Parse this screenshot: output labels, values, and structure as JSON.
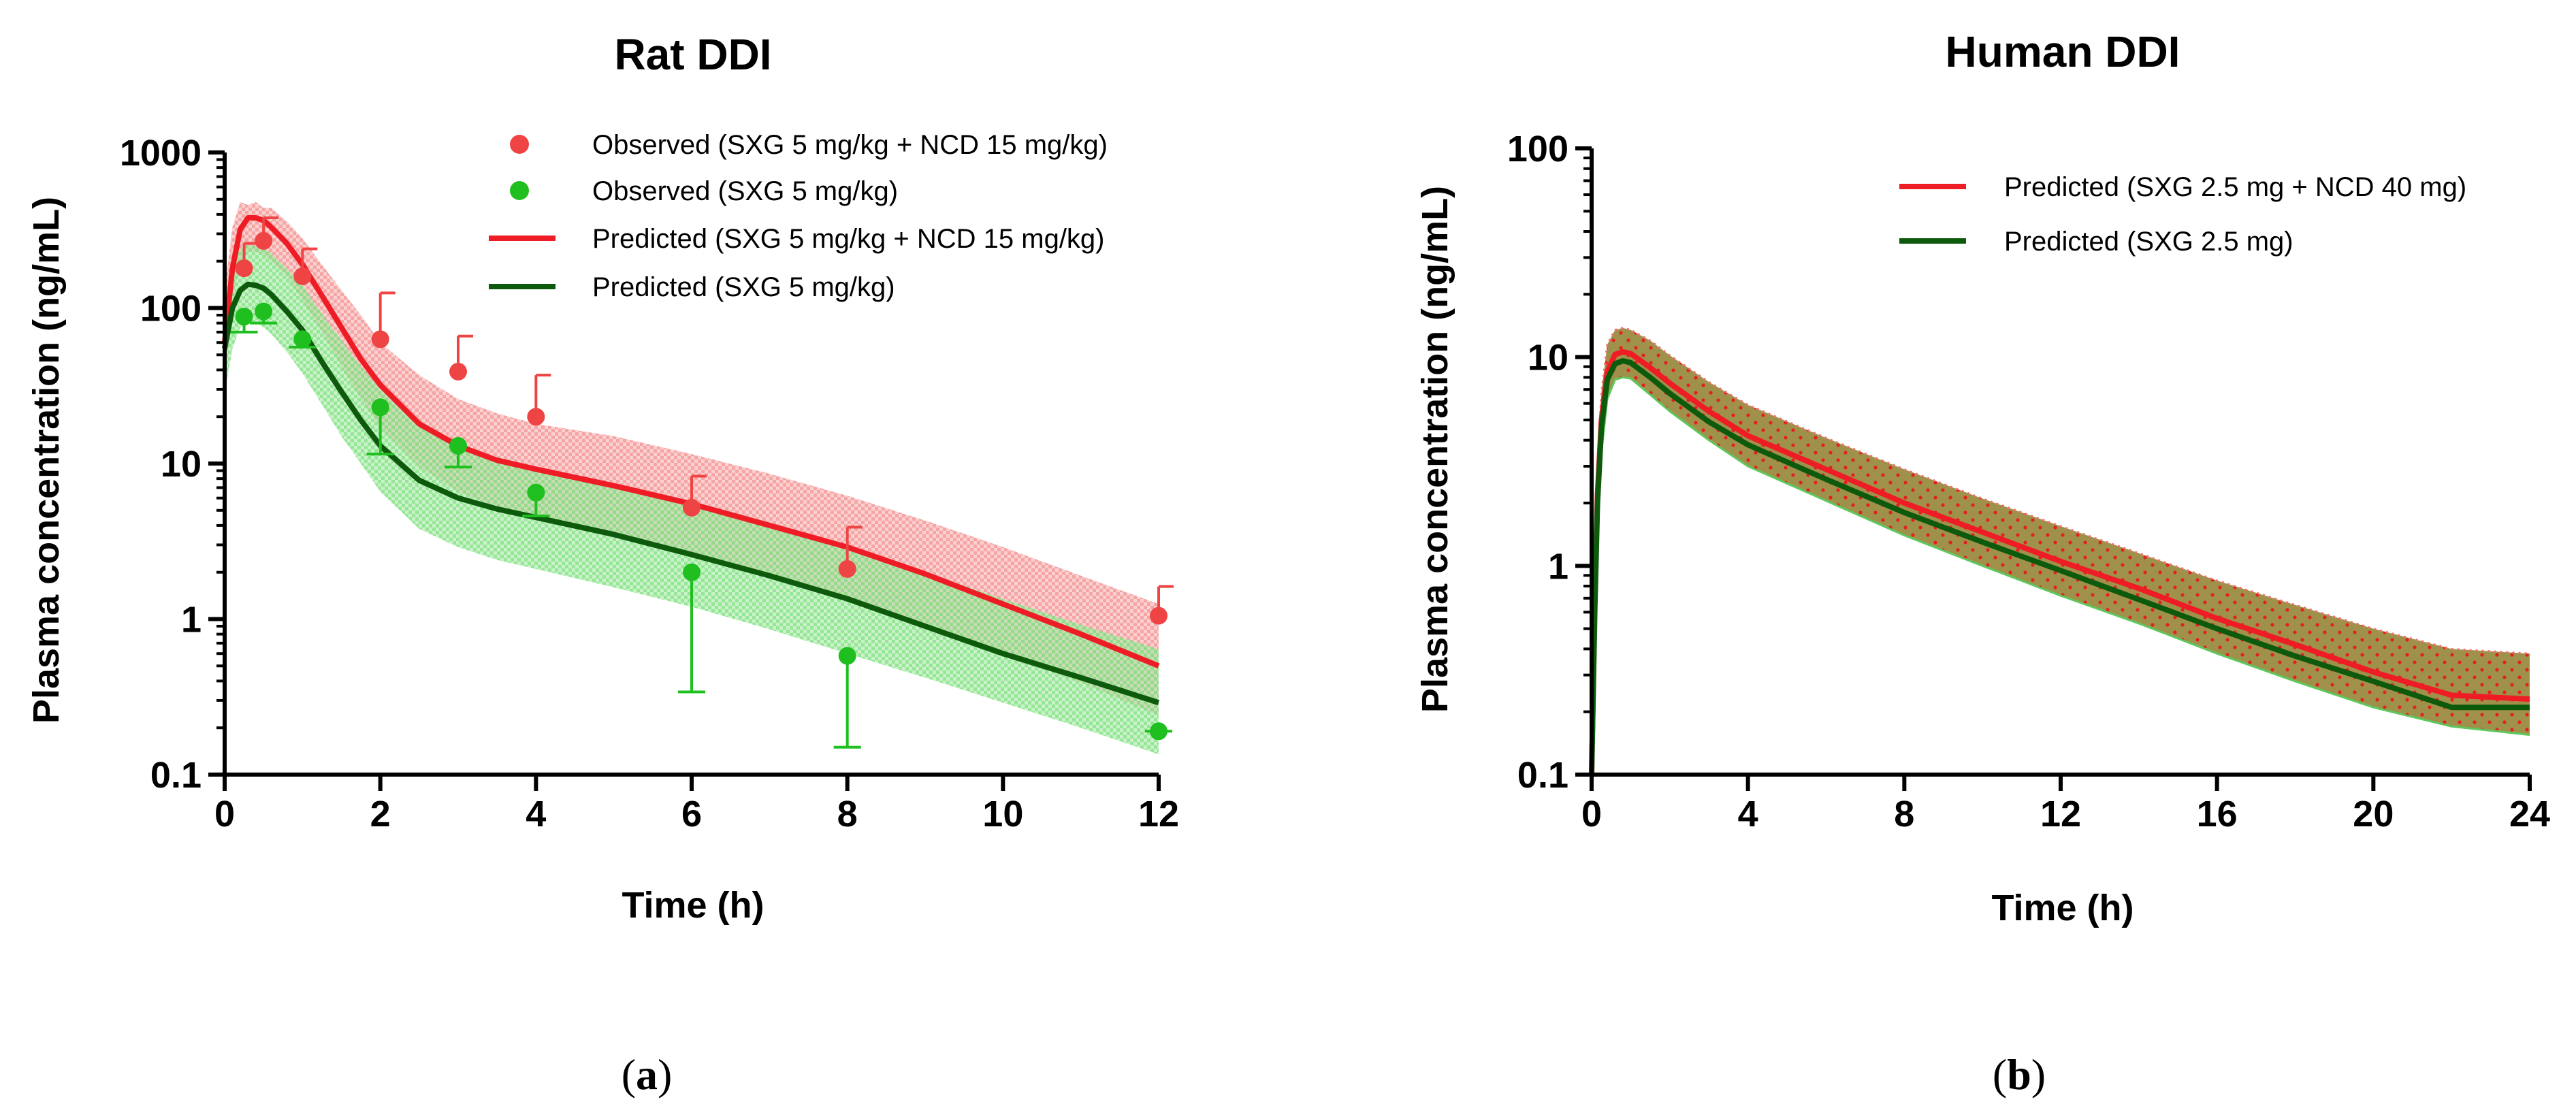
{
  "colors": {
    "red": "#ee1c25",
    "red_marker": "#ef4444",
    "green_marker": "#1fbf1f",
    "dark_green": "#0d5a0d",
    "red_band": "#f7a9a9",
    "green_band": "#9ee89e",
    "human_band": "#8f7e2a"
  },
  "chart_data": [
    {
      "type": "line",
      "panel_label": "a",
      "title": "Rat DDI",
      "xlabel": "Time (h)",
      "ylabel": "Plasma concentration (ng/mL)",
      "xlim": [
        0,
        12
      ],
      "ylim": [
        0.1,
        1000
      ],
      "yscale": "log",
      "xticks": [
        0,
        2,
        4,
        6,
        8,
        10,
        12
      ],
      "xtick_labels": [
        "0",
        "2",
        "4",
        "6",
        "8",
        "10",
        "12"
      ],
      "yticks": [
        0.1,
        1,
        10,
        100,
        1000
      ],
      "ytick_labels": [
        "0.1",
        "1",
        "10",
        "100",
        "1000"
      ],
      "legend_position": "top-right",
      "observed": [
        {
          "name": "Observed (SXG 5 mg/kg + NCD 15 mg/kg)",
          "color": "#ef4444",
          "x": [
            0.25,
            0.5,
            1,
            2,
            3,
            4,
            6,
            8,
            12
          ],
          "y": [
            180,
            270,
            160,
            63,
            39,
            20,
            5.2,
            2.1,
            1.05
          ],
          "err_upper": [
            260,
            380,
            240,
            125,
            66,
            37,
            8.3,
            3.9,
            1.62
          ]
        },
        {
          "name": "Observed (SXG 5 mg/kg)",
          "color": "#1fbf1f",
          "x": [
            0.25,
            0.5,
            1,
            2,
            3,
            4,
            6,
            8,
            12
          ],
          "y": [
            88,
            95,
            63,
            23,
            13,
            6.5,
            2.0,
            0.58,
            0.19
          ],
          "err_lower": [
            70,
            80,
            56,
            11.5,
            9.5,
            4.6,
            0.34,
            0.15,
            0.19
          ]
        }
      ],
      "predicted": [
        {
          "name": "Predicted (SXG 5 mg/kg + NCD 15 mg/kg)",
          "color": "#ee1c25",
          "x": [
            0,
            0.1,
            0.2,
            0.3,
            0.4,
            0.5,
            0.6,
            0.8,
            1,
            1.25,
            1.5,
            1.75,
            2,
            2.5,
            3,
            3.5,
            4,
            5,
            6,
            7,
            8,
            9,
            10,
            11,
            12
          ],
          "y": [
            60,
            180,
            320,
            380,
            380,
            365,
            330,
            260,
            190,
            120,
            75,
            47,
            32,
            18,
            13,
            10.5,
            9.2,
            7.2,
            5.5,
            4.0,
            2.9,
            1.95,
            1.25,
            0.8,
            0.5
          ],
          "band_upper": [
            130,
            330,
            480,
            460,
            480,
            440,
            440,
            360,
            280,
            190,
            130,
            90,
            60,
            37,
            26,
            21,
            18,
            15,
            11.5,
            8.6,
            6.2,
            4.3,
            2.9,
            1.9,
            1.25
          ],
          "band_lower": [
            30,
            110,
            200,
            230,
            230,
            220,
            200,
            160,
            112,
            70,
            42,
            26,
            17,
            9.5,
            6.6,
            5.2,
            4.4,
            3.4,
            2.6,
            1.9,
            1.35,
            0.92,
            0.6,
            0.39,
            0.24
          ]
        },
        {
          "name": "Predicted (SXG 5 mg/kg)",
          "color": "#0d5a0d",
          "x": [
            0,
            0.1,
            0.2,
            0.3,
            0.4,
            0.5,
            0.6,
            0.8,
            1,
            1.25,
            1.5,
            1.75,
            2,
            2.5,
            3,
            3.5,
            4,
            5,
            6,
            7,
            8,
            9,
            10,
            11,
            12
          ],
          "y": [
            55,
            100,
            130,
            142,
            140,
            134,
            122,
            95,
            72,
            45,
            29,
            19,
            13,
            7.8,
            6.0,
            5.1,
            4.5,
            3.5,
            2.6,
            1.9,
            1.35,
            0.9,
            0.6,
            0.42,
            0.29
          ],
          "band_upper": [
            120,
            190,
            240,
            255,
            250,
            245,
            225,
            180,
            140,
            92,
            62,
            42,
            30,
            18,
            13,
            11,
            9.5,
            7.3,
            5.5,
            4.0,
            2.9,
            2.0,
            1.35,
            0.92,
            0.64
          ],
          "band_lower": [
            28,
            55,
            75,
            80,
            80,
            75,
            68,
            52,
            38,
            24,
            15,
            10,
            6.6,
            3.8,
            2.9,
            2.4,
            2.1,
            1.6,
            1.2,
            0.86,
            0.6,
            0.42,
            0.29,
            0.2,
            0.135
          ]
        }
      ]
    },
    {
      "type": "line",
      "panel_label": "b",
      "title": "Human DDI",
      "xlabel": "Time (h)",
      "ylabel": "Plasma concentration (ng/mL)",
      "xlim": [
        0,
        24
      ],
      "ylim": [
        0.1,
        100
      ],
      "yscale": "log",
      "xticks": [
        0,
        4,
        8,
        12,
        16,
        20,
        24
      ],
      "xtick_labels": [
        "0",
        "4",
        "8",
        "12",
        "16",
        "20",
        "24"
      ],
      "yticks": [
        0.1,
        1,
        10,
        100
      ],
      "ytick_labels": [
        "0.1",
        "1",
        "10",
        "100"
      ],
      "legend_position": "top-right",
      "predicted": [
        {
          "name": "Predicted (SXG 2.5 mg + NCD 40 mg)",
          "color": "#ee1c25",
          "x": [
            0,
            0.08,
            0.15,
            0.25,
            0.4,
            0.6,
            0.8,
            1.0,
            1.5,
            2,
            3,
            4,
            6,
            8,
            10,
            12,
            14,
            16,
            18,
            20,
            22,
            24
          ],
          "y": [
            0.1,
            0.7,
            2.2,
            5.0,
            8.5,
            10.3,
            10.6,
            10.4,
            8.9,
            7.5,
            5.5,
            4.2,
            2.9,
            2.0,
            1.45,
            1.05,
            0.78,
            0.56,
            0.42,
            0.31,
            0.24,
            0.23
          ],
          "band_upper": [
            0.14,
            1.0,
            3.0,
            6.8,
            11.5,
            13.5,
            13.8,
            13.5,
            12.0,
            10.2,
            7.6,
            5.9,
            4.1,
            2.9,
            2.1,
            1.55,
            1.15,
            0.85,
            0.65,
            0.5,
            0.4,
            0.38
          ],
          "band_lower": [
            0.1,
            0.45,
            1.5,
            3.5,
            6.3,
            7.8,
            8.0,
            7.9,
            6.6,
            5.5,
            4.0,
            3.0,
            2.05,
            1.4,
            1.0,
            0.72,
            0.53,
            0.38,
            0.28,
            0.21,
            0.17,
            0.155
          ]
        },
        {
          "name": "Predicted (SXG 2.5 mg)",
          "color": "#0d5a0d",
          "x": [
            0,
            0.08,
            0.15,
            0.25,
            0.4,
            0.6,
            0.8,
            1.0,
            1.5,
            2,
            3,
            4,
            6,
            8,
            10,
            12,
            14,
            16,
            18,
            20,
            22,
            24
          ],
          "y": [
            0.1,
            0.6,
            2.0,
            4.6,
            7.8,
            9.3,
            9.6,
            9.4,
            8.0,
            6.7,
            4.9,
            3.8,
            2.6,
            1.8,
            1.3,
            0.95,
            0.69,
            0.5,
            0.37,
            0.28,
            0.21,
            0.21
          ]
        }
      ]
    }
  ]
}
